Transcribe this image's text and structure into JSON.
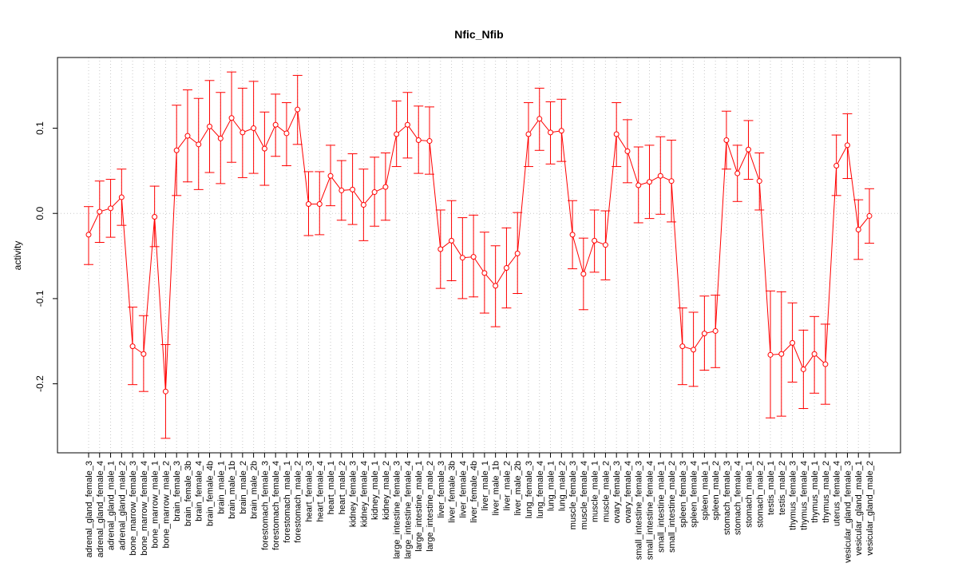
{
  "chart_data": {
    "type": "line",
    "title": "Nfic_Nfib",
    "xlabel": "",
    "ylabel": "activity",
    "ylim": [
      -0.281,
      0.183
    ],
    "yticks": [
      0.1,
      0.0,
      -0.1,
      -0.2
    ],
    "ytick_labels": [
      "0.1",
      "0.0",
      "-0.1",
      "-0.2"
    ],
    "grid": "dotted vertical per category, dotted horizontal at 0",
    "series_color": "#ff0000",
    "categories": [
      "adrenal_gland_female_3",
      "adrenal_gland_female_4",
      "adrenal_gland_male_1",
      "adrenal_gland_male_2",
      "bone_marrow_female_3",
      "bone_marrow_female_4",
      "bone_marrow_male_1",
      "bone_marrow_male_2",
      "brain_female_3",
      "brain_female_3b",
      "brain_female_4",
      "brain_female_4b",
      "brain_male_1",
      "brain_male_1b",
      "brain_male_2",
      "brain_male_2b",
      "forestomach_female_3",
      "forestomach_female_4",
      "forestomach_male_1",
      "forestomach_male_2",
      "heart_female_3",
      "heart_female_4",
      "heart_male_1",
      "heart_male_2",
      "kidney_female_3",
      "kidney_female_4",
      "kidney_male_1",
      "kidney_male_2",
      "large_intestine_female_3",
      "large_intestine_female_4",
      "large_intestine_male_1",
      "large_intestine_male_2",
      "liver_female_3",
      "liver_female_3b",
      "liver_female_4",
      "liver_female_4b",
      "liver_male_1",
      "liver_male_1b",
      "liver_male_2",
      "liver_male_2b",
      "lung_female_3",
      "lung_female_4",
      "lung_male_1",
      "lung_male_2",
      "muscle_female_3",
      "muscle_female_4",
      "muscle_male_1",
      "muscle_male_2",
      "ovary_female_3",
      "ovary_female_4",
      "small_intestine_female_3",
      "small_intestine_female_4",
      "small_intestine_male_1",
      "small_intestine_male_2",
      "spleen_female_3",
      "spleen_female_4",
      "spleen_male_1",
      "spleen_male_2",
      "stomach_female_3",
      "stomach_female_4",
      "stomach_male_1",
      "stomach_male_2",
      "testis_male_1",
      "testis_male_2",
      "thymus_female_3",
      "thymus_female_4",
      "thymus_male_1",
      "thymus_male_2",
      "uterus_female_4",
      "vesicular_gland_female_3",
      "vesicular_gland_male_1",
      "vesicular_gland_male_2"
    ],
    "values": [
      -0.025,
      0.002,
      0.006,
      0.019,
      -0.156,
      -0.165,
      -0.004,
      -0.209,
      0.074,
      0.091,
      0.081,
      0.102,
      0.088,
      0.112,
      0.095,
      0.1,
      0.076,
      0.104,
      0.094,
      0.122,
      0.011,
      0.011,
      0.044,
      0.027,
      0.028,
      0.01,
      0.025,
      0.031,
      0.093,
      0.104,
      0.086,
      0.085,
      -0.042,
      -0.032,
      -0.052,
      -0.051,
      -0.07,
      -0.085,
      -0.064,
      -0.047,
      0.093,
      0.111,
      0.095,
      0.097,
      -0.025,
      -0.071,
      -0.032,
      -0.037,
      0.093,
      0.073,
      0.033,
      0.037,
      0.044,
      0.038,
      -0.156,
      -0.16,
      -0.141,
      -0.138,
      0.086,
      0.047,
      0.075,
      0.038,
      -0.166,
      -0.165,
      -0.152,
      -0.183,
      -0.165,
      -0.177,
      0.056,
      0.08,
      -0.019,
      -0.003
    ],
    "upper": [
      0.008,
      0.038,
      0.04,
      0.052,
      -0.11,
      -0.12,
      0.032,
      -0.154,
      0.127,
      0.145,
      0.135,
      0.156,
      0.142,
      0.166,
      0.147,
      0.155,
      0.119,
      0.14,
      0.13,
      0.162,
      0.049,
      0.049,
      0.08,
      0.062,
      0.07,
      0.052,
      0.066,
      0.071,
      0.132,
      0.142,
      0.126,
      0.125,
      0.004,
      0.015,
      -0.005,
      -0.002,
      -0.022,
      -0.038,
      -0.017,
      0.001,
      0.13,
      0.147,
      0.131,
      0.134,
      0.015,
      -0.029,
      0.004,
      0.003,
      0.13,
      0.11,
      0.078,
      0.08,
      0.09,
      0.086,
      -0.111,
      -0.116,
      -0.097,
      -0.096,
      0.12,
      0.08,
      0.109,
      0.071,
      -0.091,
      -0.092,
      -0.105,
      -0.137,
      -0.121,
      -0.13,
      0.092,
      0.117,
      0.016,
      0.029
    ],
    "lower": [
      -0.06,
      -0.034,
      -0.028,
      -0.014,
      -0.201,
      -0.209,
      -0.039,
      -0.264,
      0.021,
      0.037,
      0.028,
      0.048,
      0.035,
      0.06,
      0.042,
      0.047,
      0.033,
      0.067,
      0.056,
      0.081,
      -0.026,
      -0.025,
      0.009,
      -0.008,
      -0.013,
      -0.032,
      -0.015,
      -0.008,
      0.055,
      0.065,
      0.047,
      0.046,
      -0.088,
      -0.079,
      -0.1,
      -0.098,
      -0.117,
      -0.133,
      -0.111,
      -0.094,
      0.055,
      0.074,
      0.058,
      0.061,
      -0.065,
      -0.113,
      -0.069,
      -0.078,
      0.055,
      0.036,
      -0.011,
      -0.006,
      -0.001,
      -0.01,
      -0.201,
      -0.203,
      -0.184,
      -0.181,
      0.052,
      0.014,
      0.04,
      0.004,
      -0.24,
      -0.238,
      -0.198,
      -0.229,
      -0.211,
      -0.224,
      0.021,
      0.041,
      -0.054,
      -0.035
    ]
  }
}
